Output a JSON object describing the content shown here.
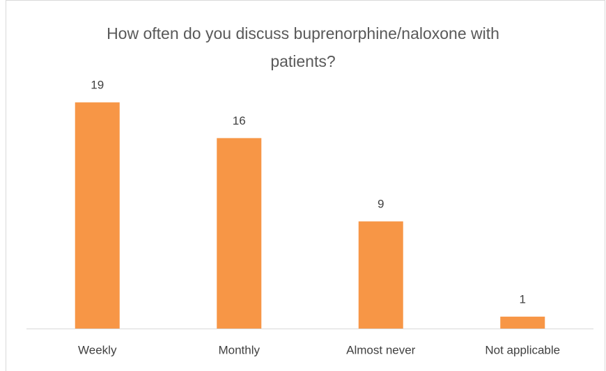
{
  "chart_data": {
    "type": "bar",
    "title": "How often do you discuss buprenorphine/naloxone with patients?",
    "categories": [
      "Weekly",
      "Monthly",
      "Almost never",
      "Not applicable"
    ],
    "values": [
      19,
      16,
      9,
      1
    ],
    "color": "#f79646"
  }
}
